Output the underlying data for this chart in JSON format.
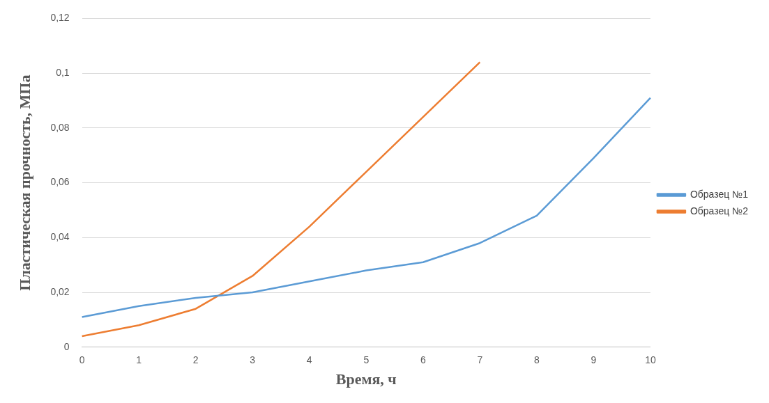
{
  "chart_data": {
    "type": "line",
    "xlabel": "Время, ч",
    "ylabel": "Пластическая прочность, МПа",
    "categories": [
      "0",
      "1",
      "2",
      "3",
      "4",
      "5",
      "6",
      "7",
      "8",
      "9",
      "10"
    ],
    "series": [
      {
        "name": "Образец №1",
        "color": "#5b9bd5",
        "values": [
          0.011,
          0.015,
          0.018,
          0.02,
          0.024,
          0.028,
          0.031,
          0.038,
          0.048,
          0.069,
          0.091
        ]
      },
      {
        "name": "Образец №2",
        "color": "#ed7d31",
        "values": [
          0.004,
          0.008,
          0.014,
          0.026,
          0.044,
          0.064,
          0.084,
          0.104,
          null,
          null,
          null
        ]
      }
    ],
    "ylim": [
      0,
      0.12
    ],
    "yticks": [
      {
        "value": 0,
        "label": "0"
      },
      {
        "value": 0.02,
        "label": "0,02"
      },
      {
        "value": 0.04,
        "label": "0,04"
      },
      {
        "value": 0.06,
        "label": "0,06"
      },
      {
        "value": 0.08,
        "label": "0,08"
      },
      {
        "value": 0.1,
        "label": "0,1"
      },
      {
        "value": 0.12,
        "label": "0,12"
      }
    ],
    "grid": "y",
    "legend": "right",
    "marker": "none",
    "line_style": "solid"
  }
}
